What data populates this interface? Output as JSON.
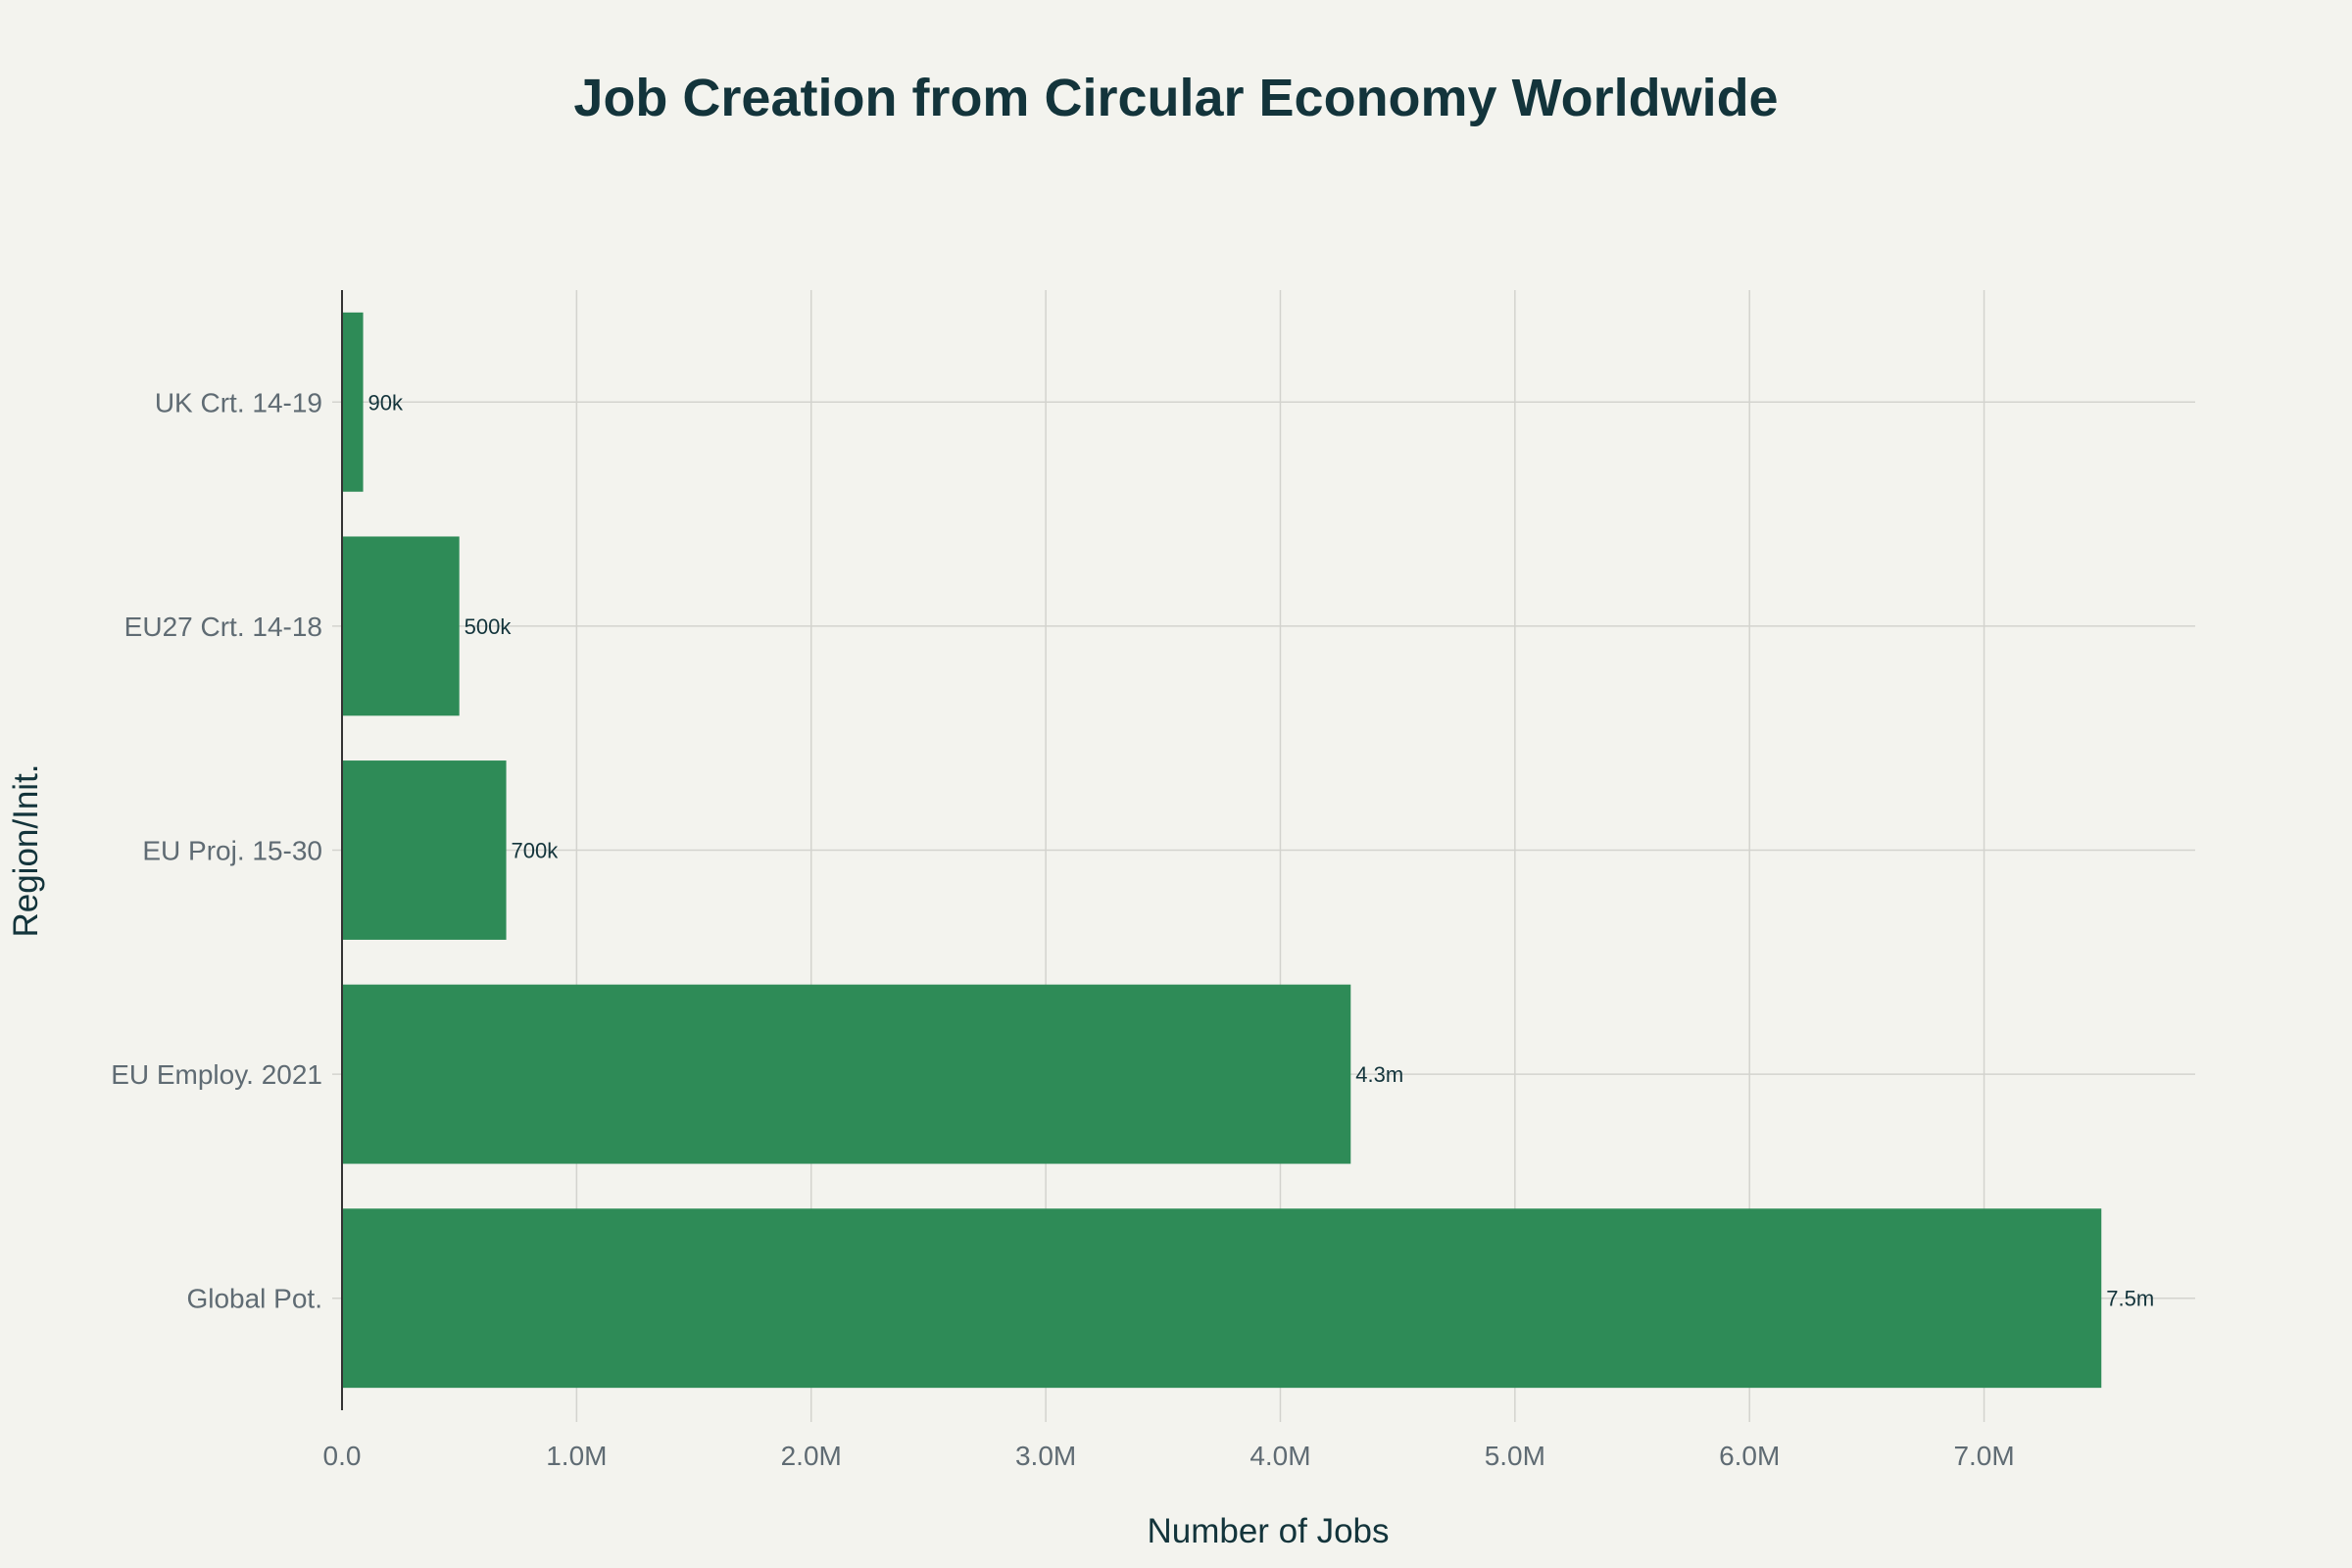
{
  "chart_data": {
    "type": "bar",
    "orientation": "horizontal",
    "title": "Job Creation from Circular Economy Worldwide",
    "xlabel": "Number of Jobs",
    "ylabel": "Region/Init.",
    "categories": [
      "Global Pot.",
      "EU Employ. 2021",
      "EU Proj. 15-30",
      "EU27 Crt. 14-18",
      "UK Crt. 14-19"
    ],
    "values": [
      7500000,
      4300000,
      700000,
      500000,
      90000
    ],
    "data_labels": [
      "7.5m",
      "4.3m",
      "700k",
      "500k",
      "90k"
    ],
    "xlim": [
      0,
      7900000
    ],
    "x_ticks": [
      0,
      1000000,
      2000000,
      3000000,
      4000000,
      5000000,
      6000000,
      7000000
    ],
    "x_tick_labels": [
      "0.0",
      "1.0M",
      "2.0M",
      "3.0M",
      "4.0M",
      "5.0M",
      "6.0M",
      "7.0M"
    ],
    "grid": true,
    "bar_color": "#2e8b57",
    "background": "#f3f3ee"
  }
}
